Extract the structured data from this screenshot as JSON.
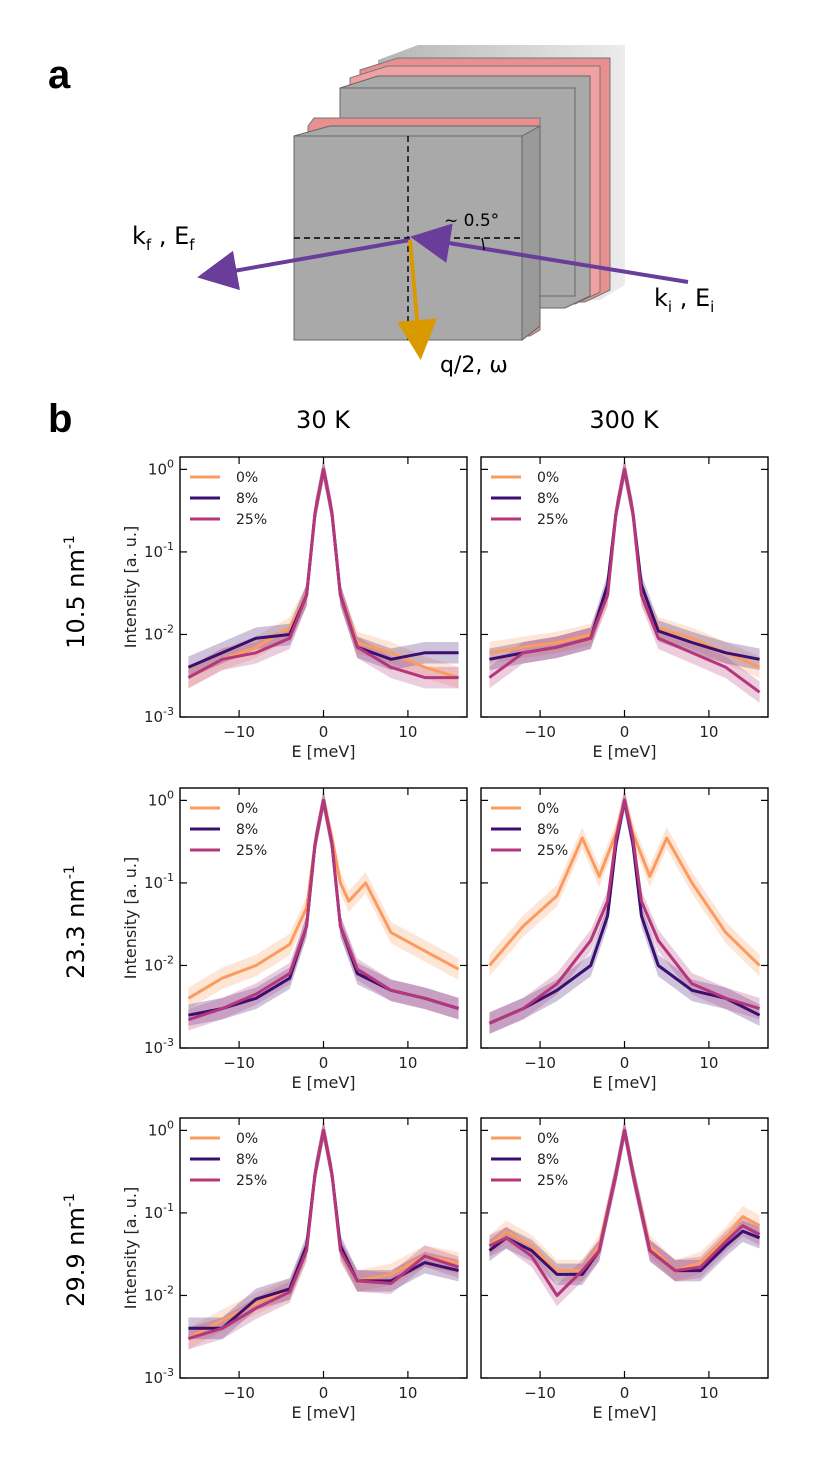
{
  "figure": {
    "panel_a": {
      "letter": "a",
      "label_kf": "k",
      "label_kf_sub": "f",
      "label_Ef": "E",
      "label_Ef_sub": "f",
      "label_ki": "k",
      "label_ki_sub": "i",
      "label_Ei": "E",
      "label_Ei_sub": "i",
      "angle_label": "~ 0.5°",
      "q_label": "q/2, ω",
      "colors": {
        "sheet": "#a9a9a9",
        "edge": "#e88f8f",
        "beam": "#6a3d9a",
        "q_arrow": "#e0a800"
      }
    },
    "panel_b": {
      "letter": "b",
      "col_titles": [
        "30 K",
        "300 K"
      ],
      "row_labels": [
        {
          "base": "10.5 nm",
          "sup": "-1"
        },
        {
          "base": "23.3 nm",
          "sup": "-1"
        },
        {
          "base": "29.9 nm",
          "sup": "-1"
        }
      ]
    }
  },
  "chart_data": [
    {
      "type": "line",
      "id": "q10.5_30K",
      "xlabel": "E [meV]",
      "ylabel": "Intensity [a. u.]",
      "xlim": [
        -17,
        17
      ],
      "ylim_log10": [
        -3,
        0.15
      ],
      "xticks": [
        "−10",
        "0",
        "10"
      ],
      "yticks": [
        [
          "10",
          "-3"
        ],
        [
          "10",
          "-2"
        ],
        [
          "10",
          "-1"
        ],
        [
          "10",
          "0"
        ]
      ],
      "legend": [
        "0%",
        "8%",
        "25%"
      ],
      "series": [
        {
          "name": "0%",
          "color": "#fb9b5f",
          "x": [
            -16,
            -12,
            -8,
            -4,
            -2,
            -1,
            0,
            1,
            2,
            4,
            8,
            12,
            16
          ],
          "y": [
            0.003,
            0.005,
            0.007,
            0.012,
            0.03,
            0.3,
            1.0,
            0.3,
            0.03,
            0.008,
            0.006,
            0.004,
            0.003
          ]
        },
        {
          "name": "8%",
          "color": "#3b0f70",
          "x": [
            -16,
            -12,
            -8,
            -4,
            -2,
            -1,
            0,
            1,
            2,
            4,
            8,
            12,
            16
          ],
          "y": [
            0.004,
            0.006,
            0.009,
            0.01,
            0.03,
            0.3,
            1.0,
            0.3,
            0.03,
            0.007,
            0.005,
            0.006,
            0.006
          ]
        },
        {
          "name": "25%",
          "color": "#b5367a",
          "x": [
            -16,
            -12,
            -8,
            -4,
            -2,
            -1,
            0,
            1,
            2,
            4,
            8,
            12,
            16
          ],
          "y": [
            0.003,
            0.005,
            0.006,
            0.009,
            0.03,
            0.3,
            1.0,
            0.3,
            0.03,
            0.007,
            0.004,
            0.003,
            0.003
          ]
        }
      ]
    },
    {
      "type": "line",
      "id": "q10.5_300K",
      "xlabel": "E [meV]",
      "ylabel": "",
      "xlim": [
        -17,
        17
      ],
      "ylim_log10": [
        -3,
        0.15
      ],
      "xticks": [
        "−10",
        "0",
        "10"
      ],
      "yticks": [],
      "legend": [
        "0%",
        "8%",
        "25%"
      ],
      "series": [
        {
          "name": "0%",
          "color": "#fb9b5f",
          "x": [
            -16,
            -12,
            -8,
            -4,
            -2,
            -1,
            0,
            1,
            2,
            4,
            8,
            12,
            16
          ],
          "y": [
            0.006,
            0.007,
            0.008,
            0.01,
            0.03,
            0.3,
            1.0,
            0.3,
            0.03,
            0.012,
            0.009,
            0.006,
            0.004
          ]
        },
        {
          "name": "8%",
          "color": "#3b0f70",
          "x": [
            -16,
            -12,
            -8,
            -4,
            -2,
            -1,
            0,
            1,
            2,
            4,
            8,
            12,
            16
          ],
          "y": [
            0.005,
            0.006,
            0.007,
            0.009,
            0.04,
            0.3,
            1.0,
            0.3,
            0.04,
            0.011,
            0.008,
            0.006,
            0.005
          ]
        },
        {
          "name": "25%",
          "color": "#b5367a",
          "x": [
            -16,
            -12,
            -8,
            -4,
            -2,
            -1,
            0,
            1,
            2,
            4,
            8,
            12,
            16
          ],
          "y": [
            0.003,
            0.006,
            0.007,
            0.009,
            0.03,
            0.3,
            1.0,
            0.3,
            0.03,
            0.009,
            0.006,
            0.004,
            0.002
          ]
        }
      ]
    },
    {
      "type": "line",
      "id": "q23.3_30K",
      "xlabel": "E [meV]",
      "ylabel": "Intensity [a. u.]",
      "xlim": [
        -17,
        17
      ],
      "ylim_log10": [
        -3,
        0.15
      ],
      "xticks": [
        "−10",
        "0",
        "10"
      ],
      "yticks": [
        [
          "10",
          "-3"
        ],
        [
          "10",
          "-2"
        ],
        [
          "10",
          "-1"
        ],
        [
          "10",
          "0"
        ]
      ],
      "legend": [
        "0%",
        "8%",
        "25%"
      ],
      "series": [
        {
          "name": "0%",
          "color": "#fb9b5f",
          "x": [
            -16,
            -12,
            -8,
            -4,
            -2,
            -1,
            0,
            1,
            2,
            3,
            5,
            8,
            12,
            16
          ],
          "y": [
            0.004,
            0.007,
            0.01,
            0.018,
            0.05,
            0.3,
            1.0,
            0.35,
            0.1,
            0.06,
            0.1,
            0.025,
            0.015,
            0.009
          ]
        },
        {
          "name": "8%",
          "color": "#3b0f70",
          "x": [
            -16,
            -12,
            -8,
            -4,
            -2,
            -1,
            0,
            1,
            2,
            4,
            8,
            12,
            16
          ],
          "y": [
            0.0025,
            0.003,
            0.004,
            0.007,
            0.03,
            0.3,
            1.0,
            0.3,
            0.03,
            0.008,
            0.005,
            0.004,
            0.003
          ]
        },
        {
          "name": "25%",
          "color": "#b5367a",
          "x": [
            -16,
            -12,
            -8,
            -4,
            -2,
            -1,
            0,
            1,
            2,
            4,
            8,
            12,
            16
          ],
          "y": [
            0.0022,
            0.003,
            0.0045,
            0.008,
            0.03,
            0.3,
            1.0,
            0.3,
            0.03,
            0.009,
            0.005,
            0.004,
            0.003
          ]
        }
      ]
    },
    {
      "type": "line",
      "id": "q23.3_300K",
      "xlabel": "E [meV]",
      "ylabel": "",
      "xlim": [
        -17,
        17
      ],
      "ylim_log10": [
        -3,
        0.15
      ],
      "xticks": [
        "−10",
        "0",
        "10"
      ],
      "yticks": [],
      "legend": [
        "0%",
        "8%",
        "25%"
      ],
      "series": [
        {
          "name": "0%",
          "color": "#fb9b5f",
          "x": [
            -16,
            -12,
            -8,
            -5,
            -3,
            -1,
            0,
            1,
            3,
            5,
            8,
            12,
            16
          ],
          "y": [
            0.01,
            0.03,
            0.07,
            0.35,
            0.12,
            0.4,
            1.0,
            0.4,
            0.12,
            0.35,
            0.1,
            0.025,
            0.01
          ]
        },
        {
          "name": "8%",
          "color": "#3b0f70",
          "x": [
            -16,
            -12,
            -8,
            -4,
            -2,
            -1,
            0,
            1,
            2,
            4,
            8,
            12,
            16
          ],
          "y": [
            0.002,
            0.003,
            0.005,
            0.01,
            0.04,
            0.3,
            1.0,
            0.3,
            0.04,
            0.01,
            0.005,
            0.004,
            0.0025
          ]
        },
        {
          "name": "25%",
          "color": "#b5367a",
          "x": [
            -16,
            -12,
            -8,
            -4,
            -2,
            -1,
            0,
            1,
            2,
            4,
            8,
            12,
            16
          ],
          "y": [
            0.002,
            0.003,
            0.006,
            0.02,
            0.06,
            0.35,
            1.0,
            0.35,
            0.06,
            0.02,
            0.006,
            0.004,
            0.003
          ]
        }
      ]
    },
    {
      "type": "line",
      "id": "q29.9_30K",
      "xlabel": "E [meV]",
      "ylabel": "Intensity [a. u.]",
      "xlim": [
        -17,
        17
      ],
      "ylim_log10": [
        -3,
        0.15
      ],
      "xticks": [
        "−10",
        "0",
        "10"
      ],
      "yticks": [
        [
          "10",
          "-3"
        ],
        [
          "10",
          "-2"
        ],
        [
          "10",
          "-1"
        ],
        [
          "10",
          "0"
        ]
      ],
      "legend": [
        "0%",
        "8%",
        "25%"
      ],
      "series": [
        {
          "name": "0%",
          "color": "#fb9b5f",
          "x": [
            -16,
            -12,
            -8,
            -4,
            -2,
            -1,
            0,
            1,
            2,
            4,
            8,
            12,
            16
          ],
          "y": [
            0.003,
            0.005,
            0.008,
            0.012,
            0.035,
            0.3,
            1.0,
            0.3,
            0.035,
            0.015,
            0.018,
            0.03,
            0.025
          ]
        },
        {
          "name": "8%",
          "color": "#3b0f70",
          "x": [
            -16,
            -12,
            -8,
            -4,
            -2,
            -1,
            0,
            1,
            2,
            4,
            8,
            12,
            16
          ],
          "y": [
            0.004,
            0.004,
            0.009,
            0.012,
            0.04,
            0.3,
            1.0,
            0.3,
            0.04,
            0.015,
            0.015,
            0.025,
            0.02
          ]
        },
        {
          "name": "25%",
          "color": "#b5367a",
          "x": [
            -16,
            -12,
            -8,
            -4,
            -2,
            -1,
            0,
            1,
            2,
            4,
            8,
            12,
            16
          ],
          "y": [
            0.003,
            0.004,
            0.007,
            0.011,
            0.035,
            0.3,
            1.0,
            0.3,
            0.035,
            0.015,
            0.014,
            0.03,
            0.022
          ]
        }
      ]
    },
    {
      "type": "line",
      "id": "q29.9_300K",
      "xlabel": "E [meV]",
      "ylabel": "",
      "xlim": [
        -17,
        17
      ],
      "ylim_log10": [
        -3,
        0.15
      ],
      "xticks": [
        "−10",
        "0",
        "10"
      ],
      "yticks": [],
      "legend": [
        "0%",
        "8%",
        "25%"
      ],
      "series": [
        {
          "name": "0%",
          "color": "#fb9b5f",
          "x": [
            -16,
            -14,
            -11,
            -8,
            -5,
            -3,
            -1,
            0,
            1,
            3,
            6,
            9,
            12,
            14,
            16
          ],
          "y": [
            0.04,
            0.06,
            0.04,
            0.02,
            0.02,
            0.04,
            0.3,
            1.0,
            0.3,
            0.04,
            0.02,
            0.025,
            0.05,
            0.09,
            0.07
          ]
        },
        {
          "name": "8%",
          "color": "#3b0f70",
          "x": [
            -16,
            -14,
            -11,
            -8,
            -5,
            -3,
            -1,
            0,
            1,
            3,
            6,
            9,
            12,
            14,
            16
          ],
          "y": [
            0.035,
            0.05,
            0.035,
            0.018,
            0.018,
            0.035,
            0.3,
            1.0,
            0.3,
            0.035,
            0.02,
            0.02,
            0.04,
            0.06,
            0.05
          ]
        },
        {
          "name": "25%",
          "color": "#b5367a",
          "x": [
            -16,
            -14,
            -11,
            -8,
            -5,
            -3,
            -1,
            0,
            1,
            3,
            6,
            9,
            12,
            14,
            16
          ],
          "y": [
            0.04,
            0.05,
            0.03,
            0.01,
            0.02,
            0.035,
            0.3,
            1.0,
            0.3,
            0.035,
            0.02,
            0.022,
            0.045,
            0.07,
            0.055
          ]
        }
      ]
    }
  ]
}
